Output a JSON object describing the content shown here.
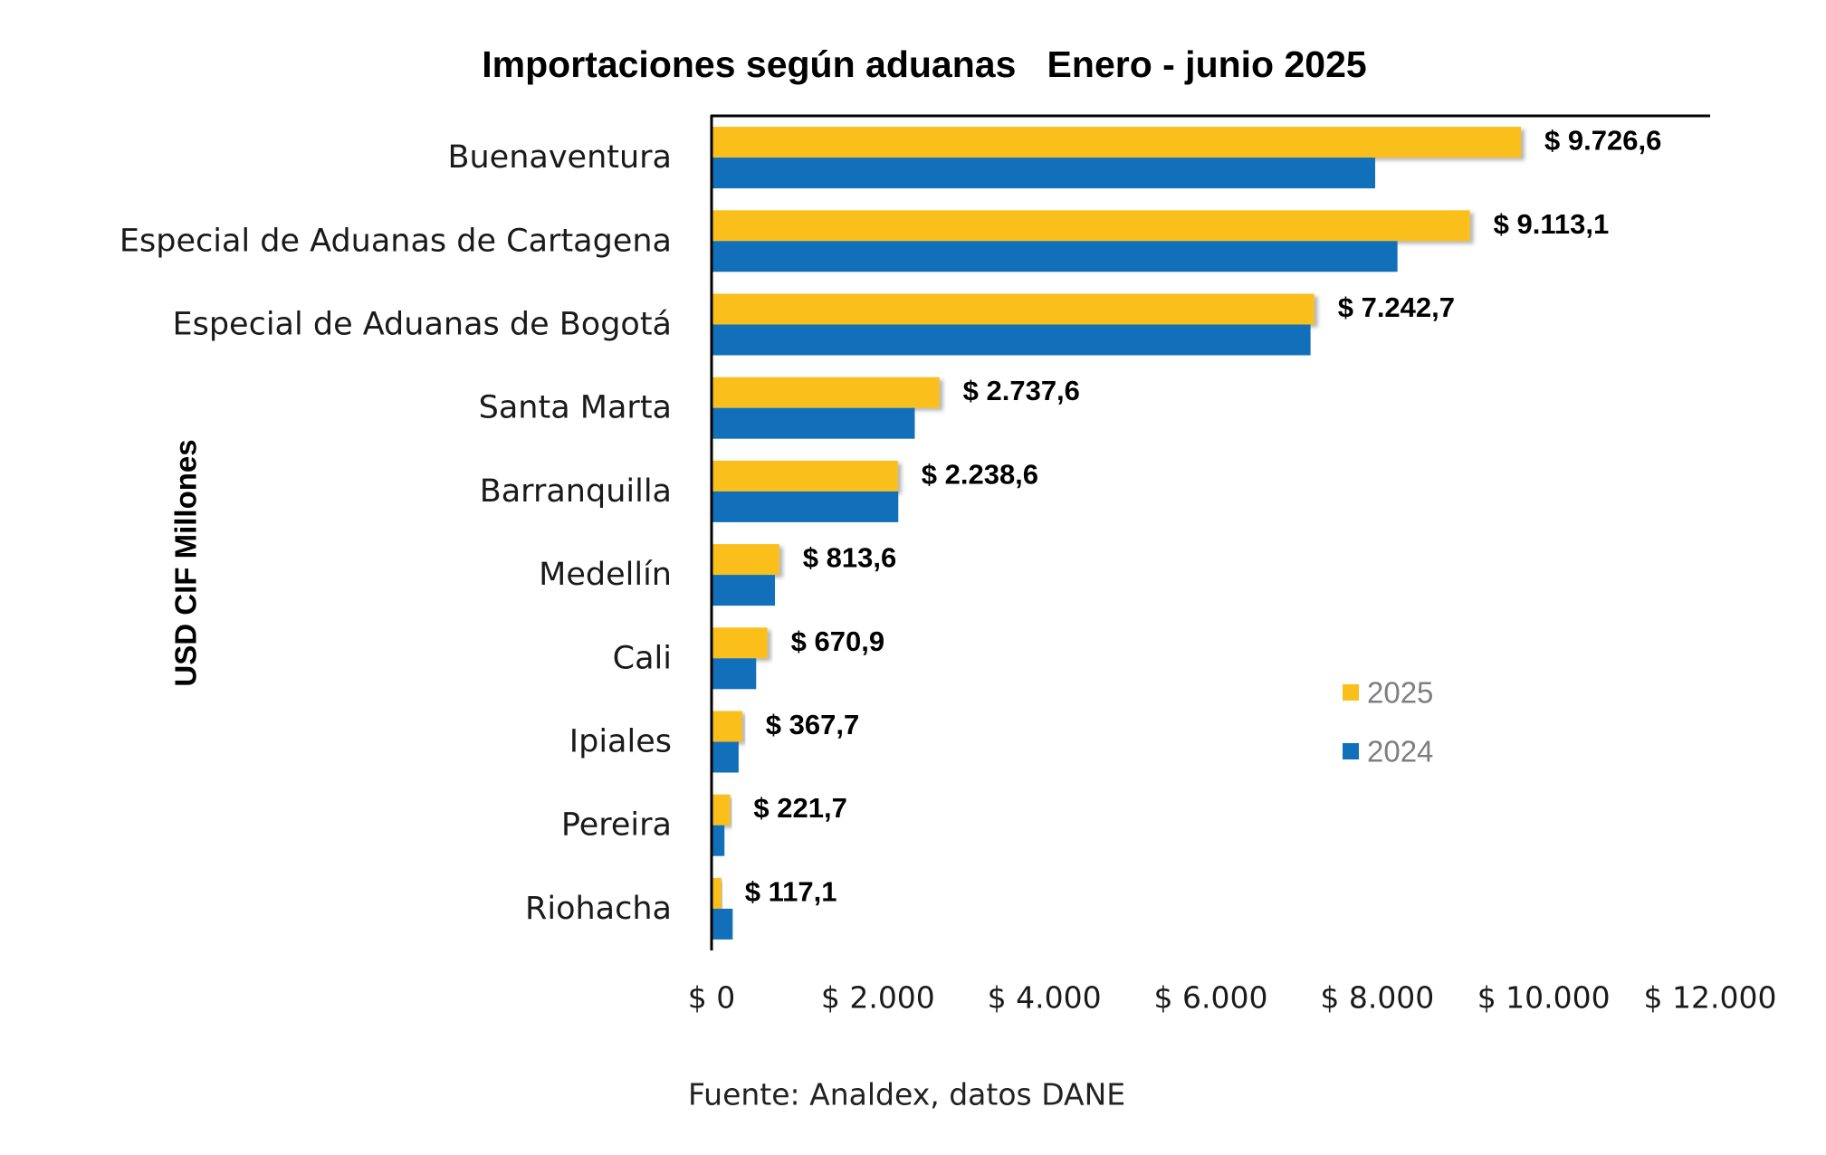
{
  "chart_data": {
    "type": "bar",
    "orientation": "horizontal",
    "title": "Importaciones según aduanas   Enero - junio 2025",
    "xlabel": "",
    "ylabel": "USD CIF Millones",
    "categories": [
      "Buenaventura",
      "Especial de Aduanas de Cartagena",
      "Especial de Aduanas de Bogotá",
      "Santa Marta",
      "Barranquilla",
      "Medellín",
      "Cali",
      "Ipiales",
      "Pereira",
      "Riohacha"
    ],
    "series": [
      {
        "name": "2025",
        "color": "#FBBF1B",
        "values": [
          9726.6,
          9113.1,
          7242.7,
          2737.6,
          2238.6,
          813.6,
          670.9,
          367.7,
          221.7,
          117.1
        ]
      },
      {
        "name": "2024",
        "color": "#1270BA",
        "values": [
          7975,
          8243,
          7198,
          2442,
          2244,
          762,
          536,
          325,
          155,
          254
        ]
      }
    ],
    "data_labels": [
      "$ 9.726,6",
      "$ 9.113,1",
      "$ 7.242,7",
      "$ 2.737,6",
      "$ 2.238,6",
      "$ 813,6",
      "$ 670,9",
      "$ 367,7",
      "$ 221,7",
      "$ 117,1"
    ],
    "xlim": [
      0,
      12000
    ],
    "x_ticks": [
      0,
      2000,
      4000,
      6000,
      8000,
      10000,
      12000
    ],
    "x_tick_labels": [
      "$ 0",
      "$ 2.000",
      "$ 4.000",
      "$ 6.000",
      "$ 8.000",
      "$ 10.000",
      "$ 12.000"
    ],
    "legend_position": "right",
    "grid": false
  },
  "footer": {
    "source": "Fuente: Analdex, datos DANE"
  }
}
